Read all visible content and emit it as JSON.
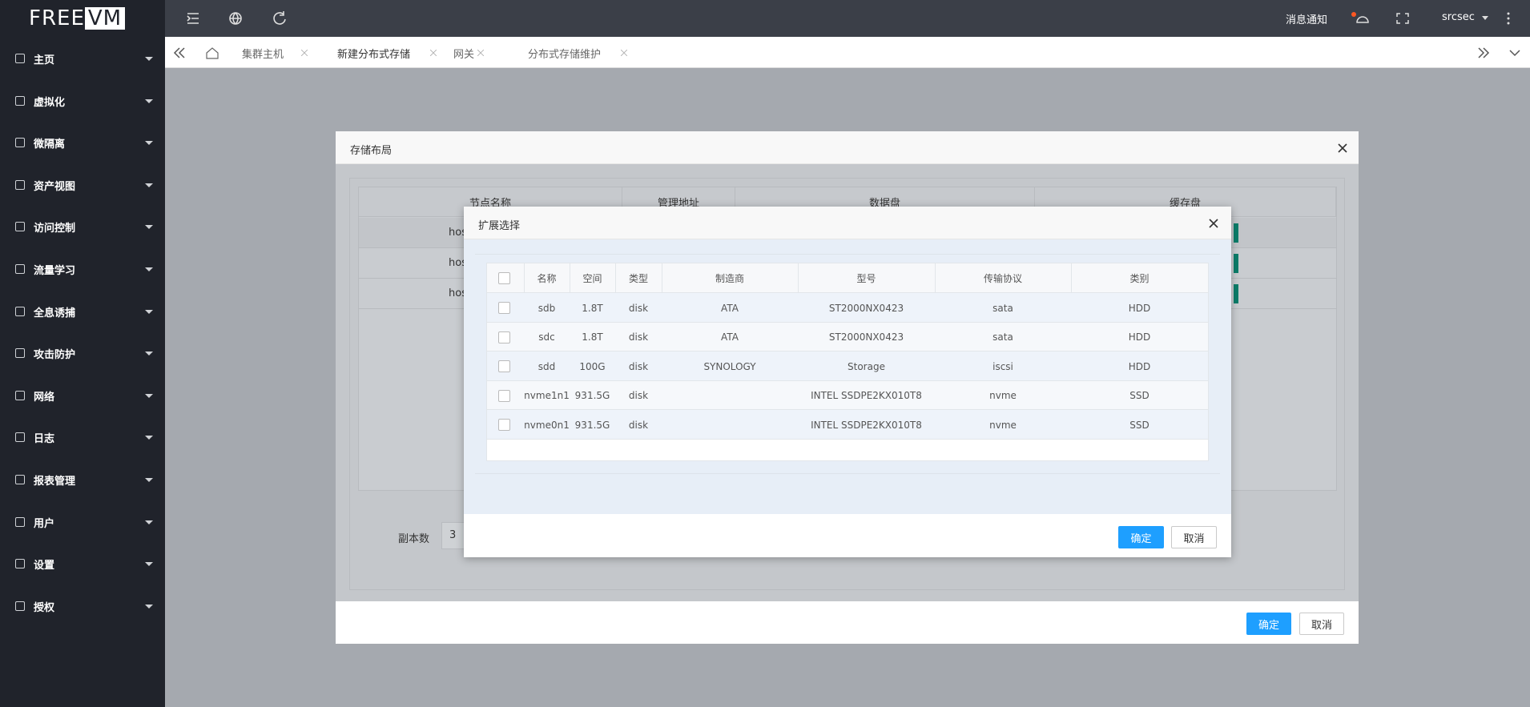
{
  "logo": {
    "left": "FREE",
    "right": "VM"
  },
  "topbar": {
    "notice": "消息通知",
    "user": "srcsec"
  },
  "nav": [
    "主页",
    "虚拟化",
    "微隔离",
    "资产视图",
    "访问控制",
    "流量学习",
    "全息诱捕",
    "攻击防护",
    "网络",
    "日志",
    "报表管理",
    "用户",
    "设置",
    "授权"
  ],
  "tabs": [
    "集群主机",
    "新建分布式存储",
    "网关",
    "分布式存储维护"
  ],
  "outer_dialog": {
    "title": "存储布局",
    "headers": [
      "节点名称",
      "管理地址",
      "数据盘",
      "缓存盘"
    ],
    "rows": [
      "hos",
      "hos",
      "hos"
    ],
    "replica_label": "副本数",
    "replica_value": "3",
    "ok": "确定",
    "cancel": "取消"
  },
  "inner_dialog": {
    "title": "扩展选择",
    "headers": [
      "名称",
      "空间",
      "类型",
      "制造商",
      "型号",
      "传输协议",
      "类别"
    ],
    "rows": [
      [
        "sdb",
        "1.8T",
        "disk",
        "ATA",
        "ST2000NX0423",
        "sata",
        "HDD"
      ],
      [
        "sdc",
        "1.8T",
        "disk",
        "ATA",
        "ST2000NX0423",
        "sata",
        "HDD"
      ],
      [
        "sdd",
        "100G",
        "disk",
        "SYNOLOGY",
        "Storage",
        "iscsi",
        "HDD"
      ],
      [
        "nvme1n1",
        "931.5G",
        "disk",
        null,
        "INTEL SSDPE2KX010T8",
        "nvme",
        "SSD"
      ],
      [
        "nvme0n1",
        "931.5G",
        "disk",
        null,
        "INTEL SSDPE2KX010T8",
        "nvme",
        "SSD"
      ]
    ],
    "ok": "确定",
    "cancel": "取消"
  }
}
